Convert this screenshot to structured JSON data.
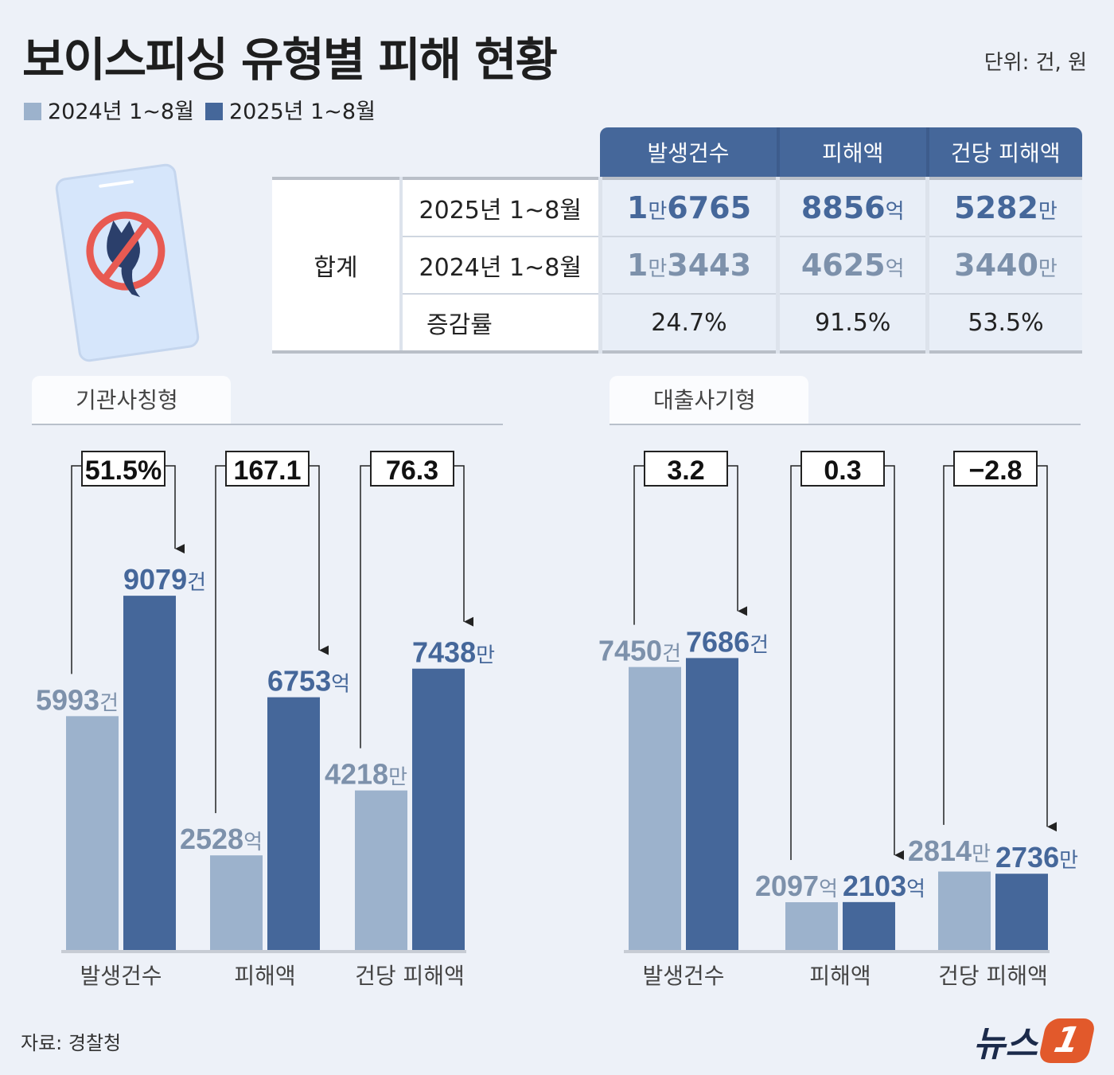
{
  "title": "보이스피싱 유형별 피해 현황",
  "unit_note": "단위: 건, 원",
  "legend": [
    {
      "label": "2024년 1~8월",
      "color": "#9cb2cc"
    },
    {
      "label": "2025년 1~8월",
      "color": "#45679a"
    }
  ],
  "table": {
    "headers": [
      "발생건수",
      "피해액",
      "건당 피해액"
    ],
    "group_label": "합계",
    "rows": [
      {
        "label": "2025년 1~8월",
        "cells": [
          [
            "1",
            "만",
            "6765",
            ""
          ],
          [
            "8856",
            "억",
            "",
            ""
          ],
          [
            "5282",
            "만",
            "",
            ""
          ]
        ]
      },
      {
        "label": "2024년 1~8월",
        "cells": [
          [
            "1",
            "만",
            "3443",
            ""
          ],
          [
            "4625",
            "억",
            "",
            ""
          ],
          [
            "3440",
            "만",
            "",
            ""
          ]
        ]
      },
      {
        "label": "증감률",
        "cells": [
          "24.7%",
          "91.5%",
          "53.5%"
        ]
      }
    ]
  },
  "chart_data": [
    {
      "type": "bar",
      "title": "기관사칭형",
      "categories": [
        "발생건수",
        "피해액",
        "건당 피해액"
      ],
      "series": [
        {
          "name": "2024년 1~8월",
          "values": [
            5993,
            2528,
            4218
          ],
          "units": [
            "건",
            "억",
            "만"
          ]
        },
        {
          "name": "2025년 1~8월",
          "values": [
            9079,
            6753,
            7438
          ],
          "units": [
            "건",
            "억",
            "만"
          ]
        }
      ],
      "change_labels": [
        "51.5%",
        "167.1",
        "76.3"
      ]
    },
    {
      "type": "bar",
      "title": "대출사기형",
      "categories": [
        "발생건수",
        "피해액",
        "건당 피해액"
      ],
      "series": [
        {
          "name": "2024년 1~8월",
          "values": [
            7450,
            2097,
            2814
          ],
          "units": [
            "건",
            "억",
            "만"
          ]
        },
        {
          "name": "2025년 1~8월",
          "values": [
            7686,
            2103,
            2736
          ],
          "units": [
            "건",
            "억",
            "만"
          ]
        }
      ],
      "change_labels": [
        "3.2",
        "0.3",
        "−2.8"
      ]
    }
  ],
  "source": "자료: 경찰청",
  "logo": {
    "text": "뉴스",
    "mark": "1"
  }
}
